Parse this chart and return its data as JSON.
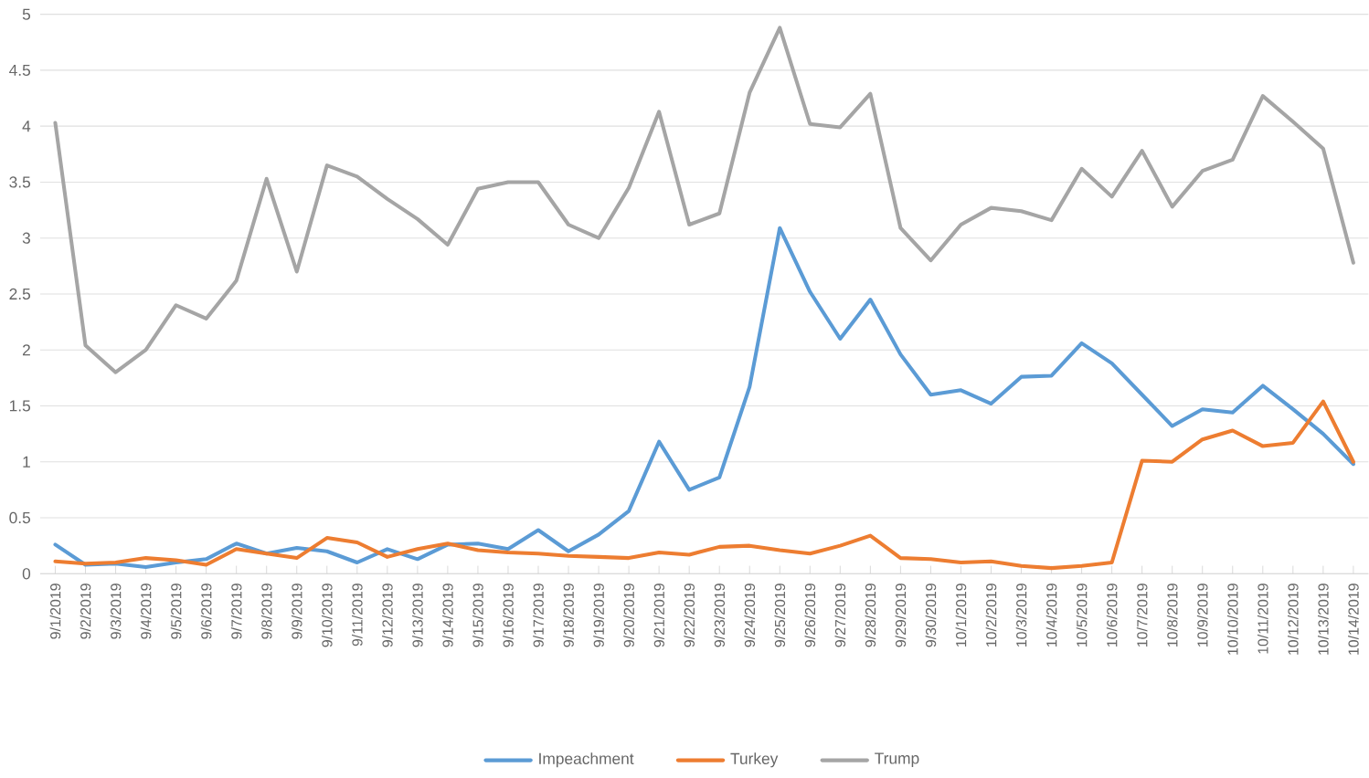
{
  "chart_data": {
    "type": "line",
    "categories": [
      "9/1/2019",
      "9/2/2019",
      "9/3/2019",
      "9/4/2019",
      "9/5/2019",
      "9/6/2019",
      "9/7/2019",
      "9/8/2019",
      "9/9/2019",
      "9/10/2019",
      "9/11/2019",
      "9/12/2019",
      "9/13/2019",
      "9/14/2019",
      "9/15/2019",
      "9/16/2019",
      "9/17/2019",
      "9/18/2019",
      "9/19/2019",
      "9/20/2019",
      "9/21/2019",
      "9/22/2019",
      "9/23/2019",
      "9/24/2019",
      "9/25/2019",
      "9/26/2019",
      "9/27/2019",
      "9/28/2019",
      "9/29/2019",
      "9/30/2019",
      "10/1/2019",
      "10/2/2019",
      "10/3/2019",
      "10/4/2019",
      "10/5/2019",
      "10/6/2019",
      "10/7/2019",
      "10/8/2019",
      "10/9/2019",
      "10/10/2019",
      "10/11/2019",
      "10/12/2019",
      "10/13/2019",
      "10/14/2019"
    ],
    "series": [
      {
        "name": "Impeachment",
        "color": "#5b9bd5",
        "values": [
          0.26,
          0.08,
          0.09,
          0.06,
          0.1,
          0.13,
          0.27,
          0.18,
          0.23,
          0.2,
          0.1,
          0.22,
          0.13,
          0.26,
          0.27,
          0.22,
          0.39,
          0.2,
          0.35,
          0.56,
          1.18,
          0.75,
          0.86,
          1.67,
          3.09,
          2.52,
          2.1,
          2.45,
          1.96,
          1.6,
          1.64,
          1.52,
          1.76,
          1.77,
          2.06,
          1.88,
          1.6,
          1.32,
          1.47,
          1.44,
          1.68,
          1.47,
          1.25,
          0.98
        ]
      },
      {
        "name": "Turkey",
        "color": "#ed7d31",
        "values": [
          0.11,
          0.09,
          0.1,
          0.14,
          0.12,
          0.08,
          0.22,
          0.18,
          0.14,
          0.32,
          0.28,
          0.15,
          0.22,
          0.27,
          0.21,
          0.19,
          0.18,
          0.16,
          0.15,
          0.14,
          0.19,
          0.17,
          0.24,
          0.25,
          0.21,
          0.18,
          0.25,
          0.34,
          0.14,
          0.13,
          0.1,
          0.11,
          0.07,
          0.05,
          0.07,
          0.1,
          1.01,
          1.0,
          1.2,
          1.28,
          1.14,
          1.17,
          1.54,
          1.0
        ]
      },
      {
        "name": "Trump",
        "color": "#a5a5a5",
        "values": [
          4.03,
          2.04,
          1.8,
          2.0,
          2.4,
          2.28,
          2.62,
          3.53,
          2.7,
          3.65,
          3.55,
          3.35,
          3.17,
          2.94,
          3.44,
          3.5,
          3.5,
          3.12,
          3.0,
          3.45,
          4.13,
          3.12,
          3.22,
          4.3,
          4.88,
          4.02,
          3.99,
          4.29,
          3.09,
          2.8,
          3.12,
          3.27,
          3.24,
          3.16,
          3.62,
          3.37,
          3.78,
          3.28,
          3.6,
          3.7,
          4.27,
          4.04,
          3.8,
          2.78
        ]
      }
    ],
    "ylim": [
      0,
      5
    ],
    "yticks": [
      0,
      0.5,
      1,
      1.5,
      2,
      2.5,
      3,
      3.5,
      4,
      4.5,
      5
    ],
    "grid": "y",
    "legend": "bottom",
    "marker": "none",
    "line_style": "solid"
  }
}
